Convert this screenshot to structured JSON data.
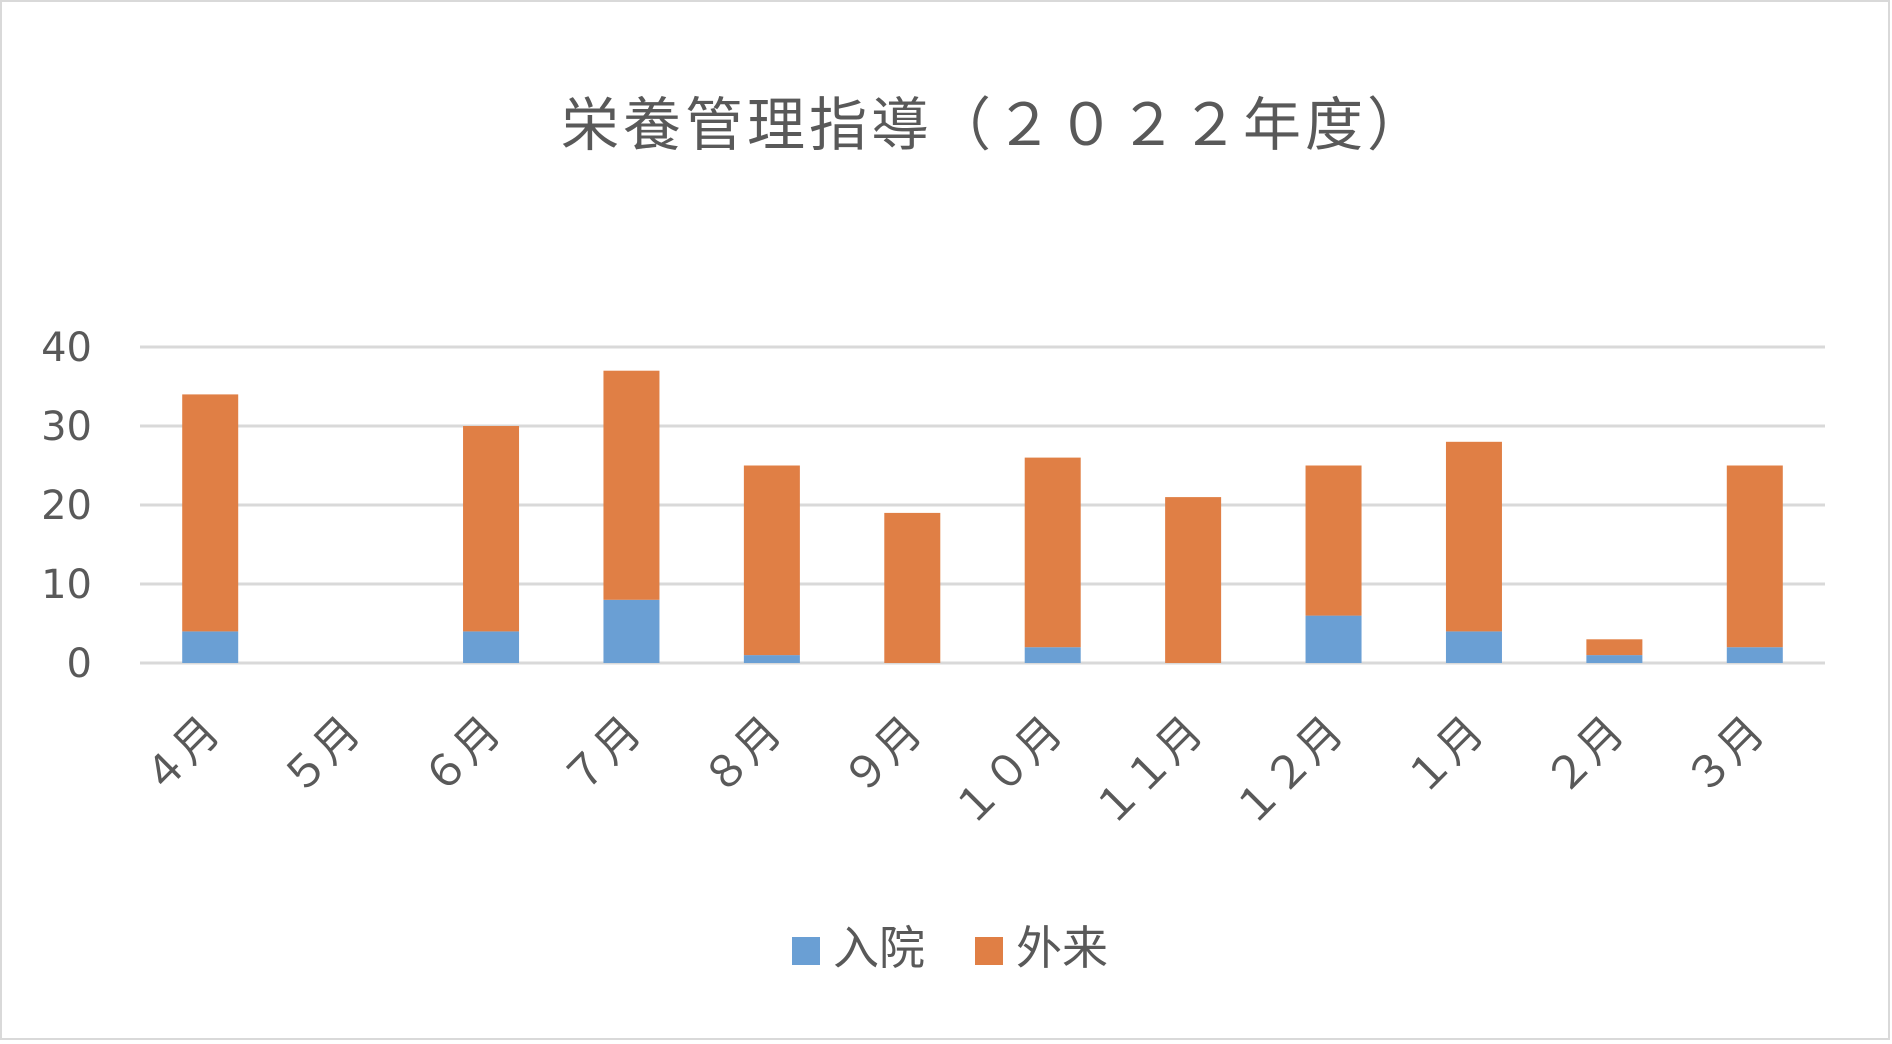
{
  "chart_data": {
    "type": "bar",
    "stacked": true,
    "title": "栄養管理指導（２０２２年度）",
    "xlabel": "",
    "ylabel": "",
    "categories": [
      "４月",
      "５月",
      "６月",
      "７月",
      "８月",
      "９月",
      "１０月",
      "１１月",
      "１２月",
      "１月",
      "２月",
      "３月"
    ],
    "y_ticks": [
      "0",
      "10",
      "20",
      "30",
      "40"
    ],
    "ylim": [
      0,
      40
    ],
    "grid": true,
    "legend_position": "bottom",
    "series": [
      {
        "name": "入院",
        "color": "#6a9fd4",
        "values": [
          4,
          0,
          4,
          8,
          1,
          0,
          2,
          0,
          6,
          4,
          1,
          2
        ]
      },
      {
        "name": "外来",
        "color": "#e07f45",
        "values": [
          30,
          0,
          26,
          29,
          24,
          19,
          24,
          21,
          19,
          24,
          2,
          23
        ]
      }
    ]
  }
}
